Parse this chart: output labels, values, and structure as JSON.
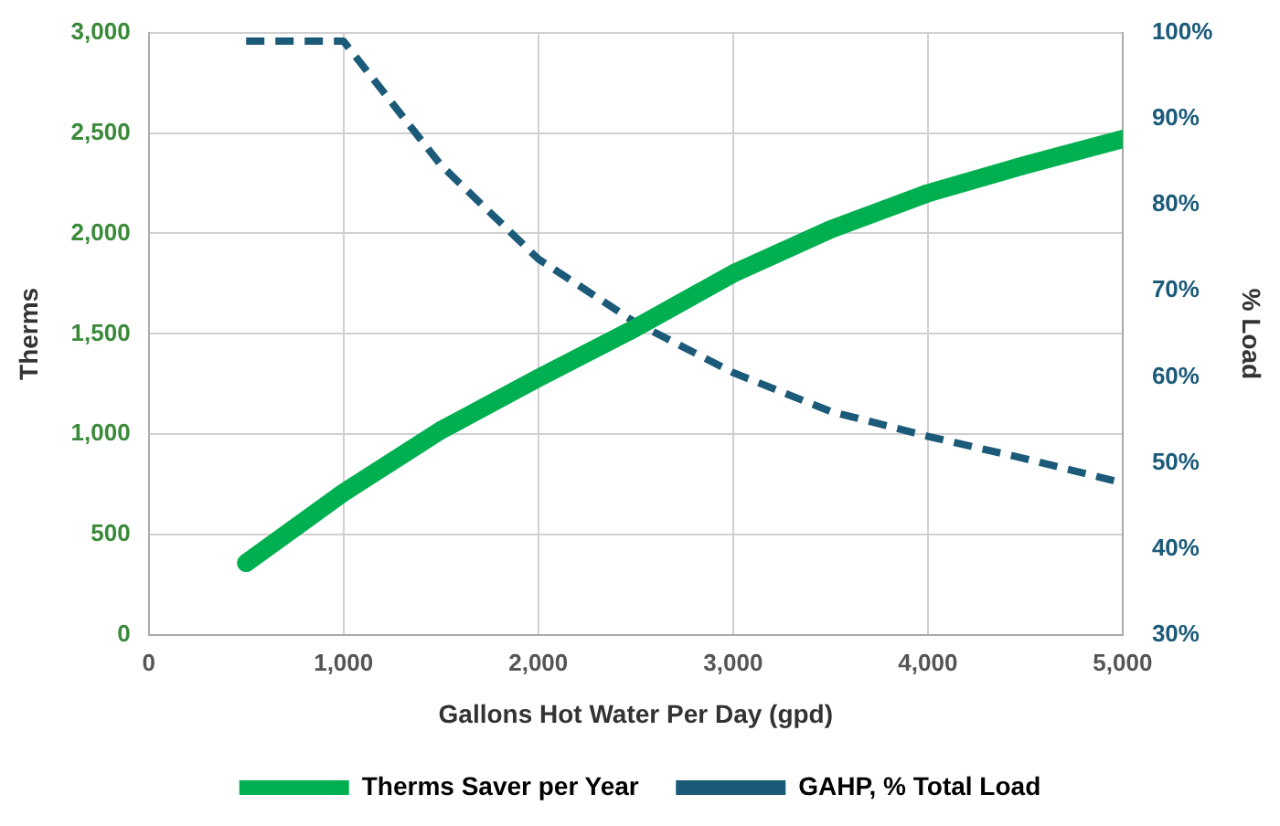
{
  "chart_data": {
    "type": "line",
    "xlabel": "Gallons Hot Water Per Day (gpd)",
    "ylabel": "Therms",
    "y2label": "% Load",
    "x": [
      500,
      1000,
      1500,
      2000,
      2500,
      3000,
      3500,
      4000,
      4500,
      5000
    ],
    "series": [
      {
        "name": "Therms Saver per Year",
        "color": "#00b050",
        "values": [
          360,
          710,
          1020,
          1280,
          1530,
          1800,
          2020,
          2200,
          2340,
          2470
        ],
        "line_style": "solid"
      },
      {
        "name": "GAHP, % Total Load",
        "color": "#1b5a78",
        "axis": "y2",
        "values": [
          99,
          99,
          84.6,
          73.7,
          66.3,
          60.5,
          56,
          53.1,
          50.5,
          47.7
        ],
        "line_style": "dashed"
      }
    ],
    "xlim": [
      0,
      5000
    ],
    "xticks": [
      {
        "value": 0,
        "label": "0"
      },
      {
        "value": 1000,
        "label": "1,000"
      },
      {
        "value": 2000,
        "label": "2,000"
      },
      {
        "value": 3000,
        "label": "3,000"
      },
      {
        "value": 4000,
        "label": "4,000"
      },
      {
        "value": 5000,
        "label": "5,000"
      }
    ],
    "ylim": [
      0,
      3000
    ],
    "yticks": [
      {
        "value": 0,
        "label": "0"
      },
      {
        "value": 500,
        "label": "500"
      },
      {
        "value": 1000,
        "label": "1,000"
      },
      {
        "value": 1500,
        "label": "1,500"
      },
      {
        "value": 2000,
        "label": "2,000"
      },
      {
        "value": 2500,
        "label": "2,500"
      },
      {
        "value": 3000,
        "label": "3,000"
      }
    ],
    "y2lim": [
      30,
      100
    ],
    "y2ticks": [
      {
        "value": 30,
        "label": "30%"
      },
      {
        "value": 40,
        "label": "40%"
      },
      {
        "value": 50,
        "label": "50%"
      },
      {
        "value": 60,
        "label": "60%"
      },
      {
        "value": 70,
        "label": "70%"
      },
      {
        "value": 80,
        "label": "80%"
      },
      {
        "value": 90,
        "label": "90%"
      },
      {
        "value": 100,
        "label": "100%"
      }
    ],
    "grid": true,
    "legend": "bottom",
    "marker": "none"
  }
}
